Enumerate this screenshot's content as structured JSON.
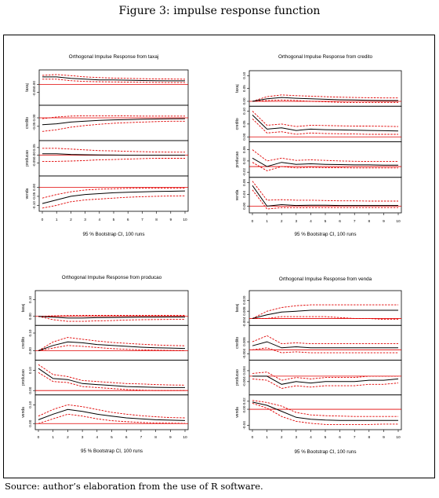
{
  "figure": {
    "title": "Figure 3: impulse response function",
    "source": "Source: author’s elaboration from the use of R software."
  },
  "colors": {
    "response": "#000000",
    "bands": "#e00000",
    "zero_line": "#e00000",
    "frame": "#000000"
  },
  "chart_data": [
    {
      "type": "line",
      "title": "Orthogonal Impulse Response from taxaj",
      "xlabel": "95 % Bootstrap CI, 100 runs",
      "x": [
        0,
        1,
        2,
        3,
        4,
        5,
        6,
        7,
        8,
        9,
        10
      ],
      "xticks": [
        "0",
        "1",
        "2",
        "3",
        "4",
        "5",
        "6",
        "7",
        "8",
        "9",
        "10"
      ],
      "panels": [
        {
          "name": "taxaj",
          "ylim": [
            -0.12,
            0.08
          ],
          "yticks": [
            "-0.05",
            "0.00"
          ],
          "yticks_v": [
            -0.05,
            0.0
          ],
          "irf": [
            0.05,
            0.05,
            0.04,
            0.035,
            0.03,
            0.03,
            0.028,
            0.026,
            0.025,
            0.024,
            0.024
          ],
          "lower": [
            0.035,
            0.035,
            0.025,
            0.02,
            0.018,
            0.017,
            0.016,
            0.015,
            0.014,
            0.013,
            0.013
          ],
          "upper": [
            0.06,
            0.065,
            0.058,
            0.05,
            0.045,
            0.042,
            0.04,
            0.038,
            0.037,
            0.036,
            0.035
          ]
        },
        {
          "name": "credito",
          "ylim": [
            -0.12,
            0.06
          ],
          "yticks": [
            "-0.05",
            "0.00"
          ],
          "yticks_v": [
            -0.05,
            0.0
          ],
          "irf": [
            -0.04,
            -0.035,
            -0.025,
            -0.02,
            -0.015,
            -0.012,
            -0.01,
            -0.008,
            -0.007,
            -0.006,
            -0.005
          ],
          "lower": [
            -0.08,
            -0.07,
            -0.055,
            -0.045,
            -0.038,
            -0.032,
            -0.028,
            -0.025,
            -0.022,
            -0.02,
            -0.02
          ],
          "upper": [
            -0.005,
            0.005,
            0.01,
            0.012,
            0.012,
            0.012,
            0.011,
            0.01,
            0.01,
            0.01,
            0.01
          ]
        },
        {
          "name": "producao",
          "ylim": [
            -0.12,
            0.08
          ],
          "yticks": [
            "-0.05",
            "0.00",
            "0.05"
          ],
          "yticks_v": [
            -0.05,
            0.0,
            0.05
          ],
          "irf": [
            0.01,
            0.01,
            0.005,
            0.003,
            0.002,
            0.001,
            0.0,
            0.0,
            0.0,
            0.0,
            0.0
          ],
          "lower": [
            -0.04,
            -0.04,
            -0.038,
            -0.035,
            -0.03,
            -0.028,
            -0.025,
            -0.022,
            -0.02,
            -0.02,
            -0.02
          ],
          "upper": [
            0.045,
            0.045,
            0.04,
            0.035,
            0.03,
            0.028,
            0.025,
            0.023,
            0.021,
            0.02,
            0.02
          ]
        },
        {
          "name": "venda",
          "ylim": [
            -0.12,
            0.05
          ],
          "yticks": [
            "-0.10",
            "-0.05",
            "0.00"
          ],
          "yticks_v": [
            -0.1,
            -0.05,
            0.0
          ],
          "irf": [
            -0.09,
            -0.07,
            -0.05,
            -0.04,
            -0.035,
            -0.03,
            -0.027,
            -0.025,
            -0.023,
            -0.022,
            -0.02
          ],
          "lower": [
            -0.115,
            -0.1,
            -0.08,
            -0.07,
            -0.065,
            -0.06,
            -0.055,
            -0.052,
            -0.05,
            -0.048,
            -0.047
          ],
          "upper": [
            -0.06,
            -0.04,
            -0.025,
            -0.015,
            -0.01,
            -0.008,
            -0.006,
            -0.005,
            -0.005,
            -0.005,
            -0.005
          ]
        }
      ]
    },
    {
      "type": "line",
      "title": "Orthogonal Impulse Response from credito",
      "xlabel": "95 % Bootstrap CI, 100 runs",
      "x": [
        0,
        1,
        2,
        3,
        4,
        5,
        6,
        7,
        8,
        9,
        10
      ],
      "xticks": [
        "0",
        "1",
        "2",
        "3",
        "4",
        "5",
        "6",
        "7",
        "8",
        "9",
        "10"
      ],
      "panels": [
        {
          "name": "taxaj",
          "ylim": [
            -0.01,
            0.11
          ],
          "yticks": [
            "0.00",
            "0.05",
            "0.10"
          ],
          "yticks_v": [
            0.0,
            0.05,
            0.1
          ],
          "irf": [
            0.0,
            0.01,
            0.015,
            0.012,
            0.01,
            0.008,
            0.006,
            0.005,
            0.004,
            0.003,
            0.003
          ],
          "lower": [
            0.0,
            0.003,
            0.005,
            0.003,
            0.0,
            -0.002,
            -0.004,
            -0.005,
            -0.005,
            -0.005,
            -0.005
          ],
          "upper": [
            0.0,
            0.018,
            0.025,
            0.022,
            0.02,
            0.018,
            0.016,
            0.015,
            0.014,
            0.013,
            0.013
          ]
        },
        {
          "name": "credito",
          "ylim": [
            -0.01,
            0.11
          ],
          "yticks": [
            "0.00",
            "0.05",
            "0.10"
          ],
          "yticks_v": [
            0.0,
            0.05,
            0.1
          ],
          "irf": [
            0.085,
            0.03,
            0.035,
            0.025,
            0.03,
            0.028,
            0.027,
            0.026,
            0.025,
            0.024,
            0.023
          ],
          "lower": [
            0.07,
            0.015,
            0.02,
            0.01,
            0.015,
            0.013,
            0.012,
            0.011,
            0.01,
            0.01,
            0.01
          ],
          "upper": [
            0.1,
            0.045,
            0.05,
            0.04,
            0.045,
            0.044,
            0.043,
            0.042,
            0.042,
            0.041,
            0.04
          ]
        },
        {
          "name": "producao",
          "ylim": [
            -0.03,
            0.08
          ],
          "yticks": [
            "-0.02",
            "0.02",
            "0.06"
          ],
          "yticks_v": [
            -0.02,
            0.02,
            0.06
          ],
          "irf": [
            0.03,
            0.0,
            0.015,
            0.008,
            0.01,
            0.008,
            0.007,
            0.006,
            0.006,
            0.005,
            0.005
          ],
          "lower": [
            0.015,
            -0.015,
            0.0,
            -0.005,
            -0.003,
            -0.004,
            -0.004,
            -0.005,
            -0.005,
            -0.005,
            -0.005
          ],
          "upper": [
            0.06,
            0.02,
            0.03,
            0.022,
            0.024,
            0.022,
            0.02,
            0.019,
            0.018,
            0.018,
            0.018
          ]
        },
        {
          "name": "venda",
          "ylim": [
            -0.015,
            0.09
          ],
          "yticks": [
            "0.00",
            "0.04",
            "0.08"
          ],
          "yticks_v": [
            0.0,
            0.04,
            0.08
          ],
          "irf": [
            0.07,
            0.0,
            0.005,
            0.002,
            0.003,
            0.003,
            0.002,
            0.002,
            0.002,
            0.002,
            0.002
          ],
          "lower": [
            0.055,
            -0.01,
            -0.005,
            -0.006,
            -0.005,
            -0.005,
            -0.005,
            -0.005,
            -0.005,
            -0.005,
            -0.005
          ],
          "upper": [
            0.085,
            0.02,
            0.022,
            0.02,
            0.02,
            0.019,
            0.018,
            0.018,
            0.017,
            0.017,
            0.017
          ]
        }
      ]
    },
    {
      "type": "line",
      "title": "Orthogonal Impulse Response from producao",
      "xlabel": "95 % Bootstrap CI, 100 runs",
      "x": [
        0,
        1,
        2,
        3,
        4,
        5,
        6,
        7,
        8,
        9,
        10
      ],
      "xticks": [
        "0",
        "1",
        "2",
        "3",
        "4",
        "5",
        "6",
        "7",
        "8",
        "9",
        "10"
      ],
      "panels": [
        {
          "name": "taxaj",
          "ylim": [
            -0.04,
            0.14
          ],
          "yticks": [
            "0.00",
            "0.10"
          ],
          "yticks_v": [
            0.0,
            0.1
          ],
          "irf": [
            0.0,
            -0.005,
            -0.01,
            -0.01,
            -0.008,
            -0.007,
            -0.006,
            -0.005,
            -0.005,
            -0.004,
            -0.004
          ],
          "lower": [
            0.0,
            -0.02,
            -0.03,
            -0.03,
            -0.027,
            -0.025,
            -0.022,
            -0.02,
            -0.019,
            -0.018,
            -0.018
          ],
          "upper": [
            0.0,
            0.003,
            0.005,
            0.006,
            0.006,
            0.006,
            0.006,
            0.006,
            0.006,
            0.006,
            0.006
          ]
        },
        {
          "name": "credito",
          "ylim": [
            -0.04,
            0.13
          ],
          "yticks": [
            "0.00",
            "0.10"
          ],
          "yticks_v": [
            0.0,
            0.1
          ],
          "irf": [
            0.0,
            0.03,
            0.05,
            0.045,
            0.035,
            0.03,
            0.025,
            0.02,
            0.017,
            0.015,
            0.013
          ],
          "lower": [
            0.0,
            0.015,
            0.03,
            0.025,
            0.018,
            0.012,
            0.008,
            0.005,
            0.003,
            0.002,
            0.001
          ],
          "upper": [
            0.0,
            0.05,
            0.075,
            0.065,
            0.055,
            0.047,
            0.042,
            0.037,
            0.033,
            0.03,
            0.028
          ]
        },
        {
          "name": "producao",
          "ylim": [
            -0.01,
            0.14
          ],
          "yticks": [
            "0.00",
            "0.10"
          ],
          "yticks_v": [
            0.0,
            0.1
          ],
          "irf": [
            0.11,
            0.06,
            0.055,
            0.035,
            0.03,
            0.025,
            0.02,
            0.018,
            0.016,
            0.015,
            0.015
          ],
          "lower": [
            0.09,
            0.045,
            0.04,
            0.02,
            0.015,
            0.01,
            0.005,
            0.002,
            0.0,
            0.0,
            0.0
          ],
          "upper": [
            0.13,
            0.08,
            0.07,
            0.05,
            0.045,
            0.04,
            0.035,
            0.033,
            0.03,
            0.028,
            0.027
          ]
        },
        {
          "name": "venda",
          "ylim": [
            -0.02,
            0.14
          ],
          "yticks": [
            "0.00",
            "0.10"
          ],
          "yticks_v": [
            0.0,
            0.1
          ],
          "irf": [
            0.02,
            0.05,
            0.075,
            0.065,
            0.05,
            0.04,
            0.03,
            0.025,
            0.02,
            0.018,
            0.016
          ],
          "lower": [
            0.0,
            0.025,
            0.05,
            0.04,
            0.025,
            0.015,
            0.01,
            0.006,
            0.003,
            0.002,
            0.001
          ],
          "upper": [
            0.04,
            0.075,
            0.1,
            0.09,
            0.075,
            0.06,
            0.05,
            0.042,
            0.036,
            0.032,
            0.03
          ]
        }
      ]
    },
    {
      "type": "line",
      "title": "Orthogonal Impulse Response from venda",
      "xlabel": "95 % Bootstrap CI, 100 runs",
      "x": [
        0,
        1,
        2,
        3,
        4,
        5,
        6,
        7,
        8,
        9,
        10
      ],
      "xticks": [
        "0",
        "1",
        "2",
        "3",
        "4",
        "5",
        "6",
        "7",
        "8",
        "9",
        "10"
      ],
      "panels": [
        {
          "name": "taxaj",
          "ylim": [
            -0.005,
            0.028
          ],
          "yticks": [
            "-0.004",
            "0.008",
            "0.020"
          ],
          "yticks_v": [
            -0.004,
            0.008,
            0.02
          ],
          "irf": [
            0.0,
            0.004,
            0.007,
            0.008,
            0.009,
            0.009,
            0.009,
            0.009,
            0.009,
            0.009,
            0.009
          ],
          "lower": [
            0.0,
            0.0,
            0.002,
            0.002,
            0.002,
            0.002,
            0.001,
            0.0,
            0.0,
            -0.001,
            -0.001
          ],
          "upper": [
            0.0,
            0.008,
            0.012,
            0.014,
            0.015,
            0.015,
            0.015,
            0.015,
            0.015,
            0.015,
            0.015
          ]
        },
        {
          "name": "credito",
          "ylim": [
            -0.008,
            0.022
          ],
          "yticks": [
            "-0.004",
            "0.008"
          ],
          "yticks_v": [
            -0.004,
            0.008
          ],
          "irf": [
            0.004,
            0.008,
            0.002,
            0.003,
            0.002,
            0.002,
            0.002,
            0.002,
            0.002,
            0.002,
            0.002
          ],
          "lower": [
            0.0,
            0.002,
            -0.003,
            -0.002,
            -0.003,
            -0.003,
            -0.003,
            -0.003,
            -0.003,
            -0.003,
            -0.003
          ],
          "upper": [
            0.008,
            0.014,
            0.006,
            0.007,
            0.006,
            0.006,
            0.006,
            0.006,
            0.006,
            0.006,
            0.006
          ]
        },
        {
          "name": "producao",
          "ylim": [
            -0.012,
            0.01
          ],
          "yticks": [
            "-0.004",
            "0.004"
          ],
          "yticks_v": [
            -0.004,
            0.004
          ],
          "irf": [
            0.0,
            0.0,
            -0.006,
            -0.004,
            -0.005,
            -0.004,
            -0.004,
            -0.004,
            -0.003,
            -0.003,
            -0.002
          ],
          "lower": [
            -0.002,
            -0.003,
            -0.009,
            -0.007,
            -0.008,
            -0.007,
            -0.007,
            -0.007,
            -0.006,
            -0.006,
            -0.005
          ],
          "upper": [
            0.002,
            0.003,
            -0.003,
            -0.001,
            -0.002,
            -0.001,
            -0.001,
            -0.001,
            0.0,
            0.0,
            0.0
          ]
        },
        {
          "name": "venda",
          "ylim": [
            -0.045,
            0.03
          ],
          "yticks": [
            "-0.04",
            "0.00",
            "0.02"
          ],
          "yticks_v": [
            -0.04,
            0.0,
            0.02
          ],
          "irf": [
            0.018,
            0.01,
            -0.005,
            -0.02,
            -0.025,
            -0.027,
            -0.028,
            -0.028,
            -0.028,
            -0.028,
            -0.028
          ],
          "lower": [
            0.015,
            0.003,
            -0.018,
            -0.03,
            -0.035,
            -0.038,
            -0.038,
            -0.038,
            -0.038,
            -0.037,
            -0.037
          ],
          "upper": [
            0.022,
            0.017,
            0.008,
            -0.008,
            -0.014,
            -0.016,
            -0.017,
            -0.018,
            -0.018,
            -0.018,
            -0.018
          ]
        }
      ]
    }
  ]
}
